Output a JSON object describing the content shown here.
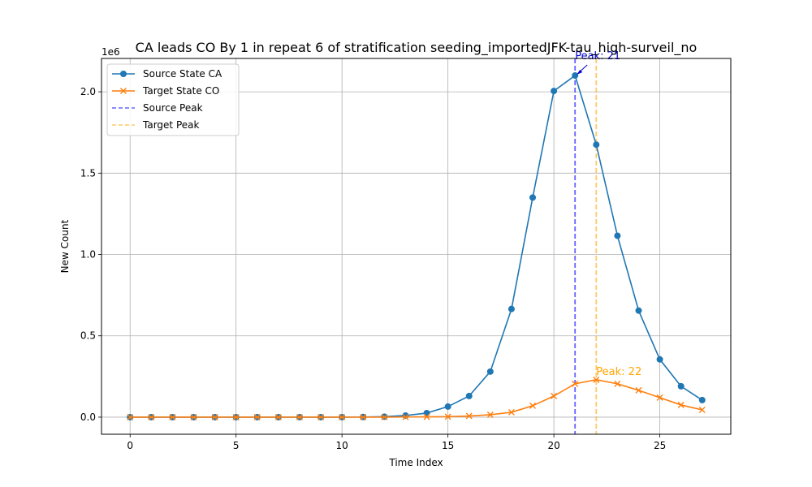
{
  "chart_data": {
    "type": "line",
    "title": "CA leads CO By 1 in repeat 6 of stratification seeding_importedJFK-tau_high-surveil_no",
    "xlabel": "Time Index",
    "ylabel": "New Count",
    "y_offset_text": "1e6",
    "xlim": [
      -1.35,
      28.35
    ],
    "ylim": [
      -0.105,
      2.205
    ],
    "y_scale_note": "values in units of 1e6",
    "x_ticks": [
      0,
      5,
      10,
      15,
      20,
      25
    ],
    "x_tick_labels": [
      "0",
      "5",
      "10",
      "15",
      "20",
      "25"
    ],
    "y_ticks": [
      0.0,
      0.5,
      1.0,
      1.5,
      2.0
    ],
    "y_tick_labels": [
      "0.0",
      "0.5",
      "1.0",
      "1.5",
      "2.0"
    ],
    "grid": true,
    "legend_position": "top-left",
    "x": [
      0,
      1,
      2,
      3,
      4,
      5,
      6,
      7,
      8,
      9,
      10,
      11,
      12,
      13,
      14,
      15,
      16,
      17,
      18,
      19,
      20,
      21,
      22,
      23,
      24,
      25,
      26,
      27
    ],
    "series": [
      {
        "name": "Source State CA",
        "marker": "circle",
        "color": "#1f77b4",
        "values": [
          0,
          0,
          0,
          0,
          0,
          0,
          0,
          0,
          0,
          0,
          0,
          0.001,
          0.003,
          0.01,
          0.025,
          0.065,
          0.13,
          0.28,
          0.665,
          1.35,
          2.005,
          2.1,
          1.675,
          1.115,
          0.655,
          0.355,
          0.19,
          0.105
        ]
      },
      {
        "name": "Target State CO",
        "marker": "x",
        "color": "#ff7f0e",
        "values": [
          0,
          0,
          0,
          0,
          0,
          0,
          0,
          0,
          0,
          0,
          0,
          0,
          0,
          0.001,
          0.002,
          0.003,
          0.007,
          0.015,
          0.03,
          0.07,
          0.13,
          0.205,
          0.23,
          0.205,
          0.165,
          0.12,
          0.075,
          0.045
        ]
      }
    ],
    "peak_lines": [
      {
        "name": "Source Peak",
        "x": 21,
        "color": "#0000ff"
      },
      {
        "name": "Target Peak",
        "x": 22,
        "color": "#ffa500"
      }
    ],
    "annotations": [
      {
        "text": "Peak: 21",
        "x": 21,
        "y": 2.1,
        "color": "#0000cc"
      },
      {
        "text": "Peak: 22",
        "x": 22,
        "y": 0.23,
        "color": "#ffa500"
      }
    ]
  }
}
